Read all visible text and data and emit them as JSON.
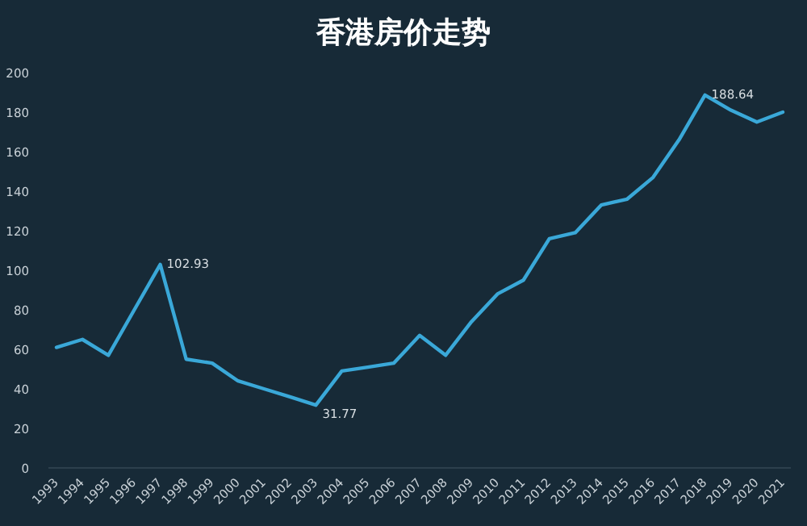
{
  "chart_data": {
    "type": "line",
    "title": "香港房价走势",
    "categories": [
      "1993",
      "1994",
      "1995",
      "1996",
      "1997",
      "1998",
      "1999",
      "2000",
      "2001",
      "2002",
      "2003",
      "2004",
      "2005",
      "2006",
      "2007",
      "2008",
      "2009",
      "2010",
      "2011",
      "2012",
      "2013",
      "2014",
      "2015",
      "2016",
      "2017",
      "2018",
      "2019",
      "2020",
      "2021"
    ],
    "series": [
      {
        "color": "#3aa8d8",
        "values": [
          61,
          65,
          57,
          80,
          102.93,
          55,
          53,
          44,
          40,
          36,
          31.77,
          49,
          51,
          53,
          67,
          57,
          74,
          88,
          95,
          116,
          119,
          133,
          136,
          147,
          166,
          188.64,
          181,
          175,
          180
        ],
        "value_labels": [
          null,
          null,
          null,
          null,
          "102.93",
          null,
          null,
          null,
          null,
          null,
          "31.77",
          null,
          null,
          null,
          null,
          null,
          null,
          null,
          null,
          null,
          null,
          null,
          null,
          null,
          null,
          "188.64",
          null,
          null,
          null
        ]
      }
    ],
    "ylim": [
      0,
      200
    ],
    "yticks": [
      0,
      20,
      40,
      60,
      80,
      100,
      120,
      140,
      160,
      180,
      200
    ],
    "grid": false,
    "marker": "none",
    "line_style": "solid"
  }
}
